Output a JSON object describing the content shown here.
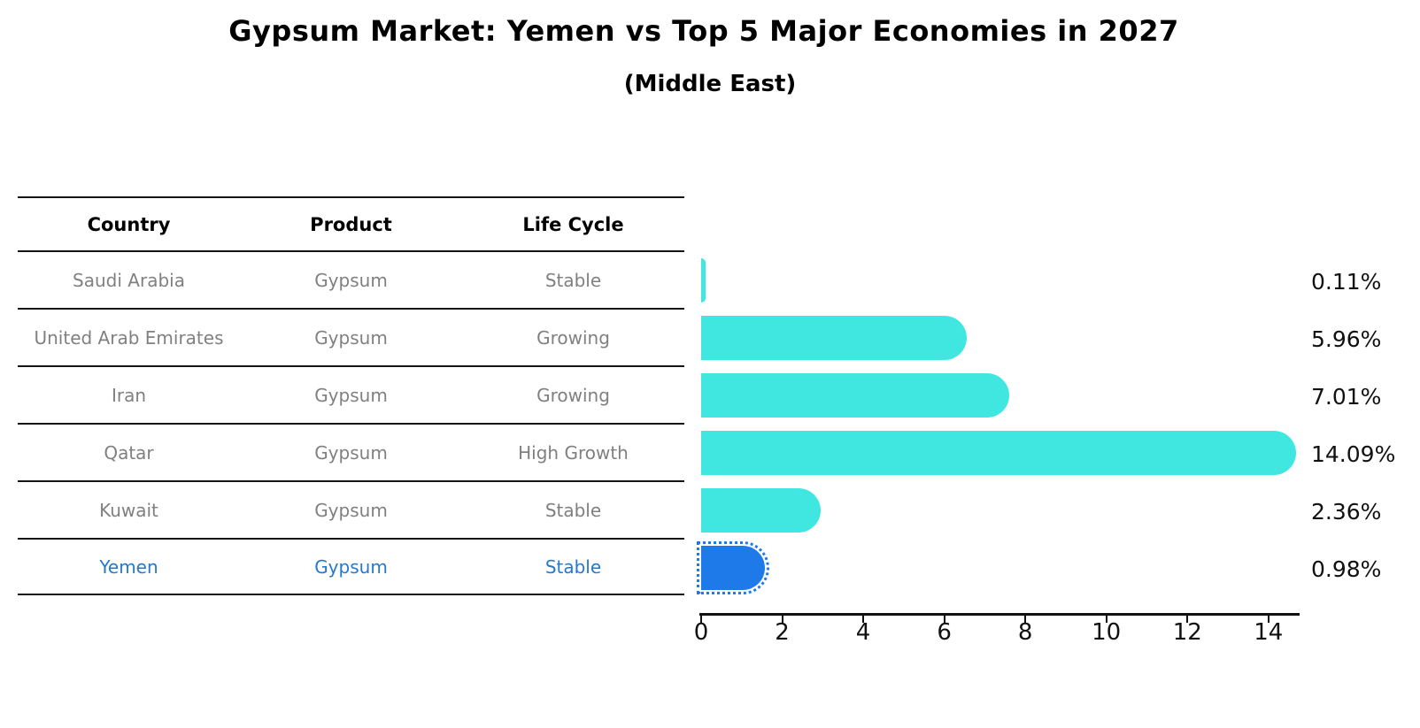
{
  "title": "Gypsum Market: Yemen vs Top 5 Major Economies in 2027",
  "subtitle": "(Middle East)",
  "table": {
    "headers": [
      "Country",
      "Product",
      "Life Cycle"
    ],
    "rows": [
      {
        "country": "Saudi Arabia",
        "product": "Gypsum",
        "life_cycle": "Stable",
        "highlight": false
      },
      {
        "country": "United Arab Emirates",
        "product": "Gypsum",
        "life_cycle": "Growing",
        "highlight": false
      },
      {
        "country": "Iran",
        "product": "Gypsum",
        "life_cycle": "Growing",
        "highlight": false
      },
      {
        "country": "Qatar",
        "product": "Gypsum",
        "life_cycle": "High Growth",
        "highlight": false
      },
      {
        "country": "Kuwait",
        "product": "Gypsum",
        "life_cycle": "Stable",
        "highlight": false
      },
      {
        "country": "Yemen",
        "product": "Gypsum",
        "life_cycle": "Stable",
        "highlight": true
      }
    ]
  },
  "chart_data": {
    "type": "bar",
    "orientation": "horizontal",
    "title": "Gypsum Market: Yemen vs Top 5 Major Economies in 2027",
    "subtitle": "(Middle East)",
    "categories": [
      "Saudi Arabia",
      "United Arab Emirates",
      "Iran",
      "Qatar",
      "Kuwait",
      "Yemen"
    ],
    "values": [
      0.11,
      5.96,
      7.01,
      14.09,
      2.36,
      0.98
    ],
    "value_labels": [
      "0.11%",
      "5.96%",
      "7.01%",
      "14.09%",
      "2.36%",
      "0.98%"
    ],
    "x_ticks": [
      0,
      2,
      4,
      6,
      8,
      10,
      12,
      14
    ],
    "xlim": [
      0,
      14.8
    ],
    "grid": false,
    "legend": false,
    "bar_color": "#40e7e1",
    "highlight_bar_color": "#1e7ae8",
    "highlight_index": 5,
    "highlight_text_color": "#2679cc"
  }
}
